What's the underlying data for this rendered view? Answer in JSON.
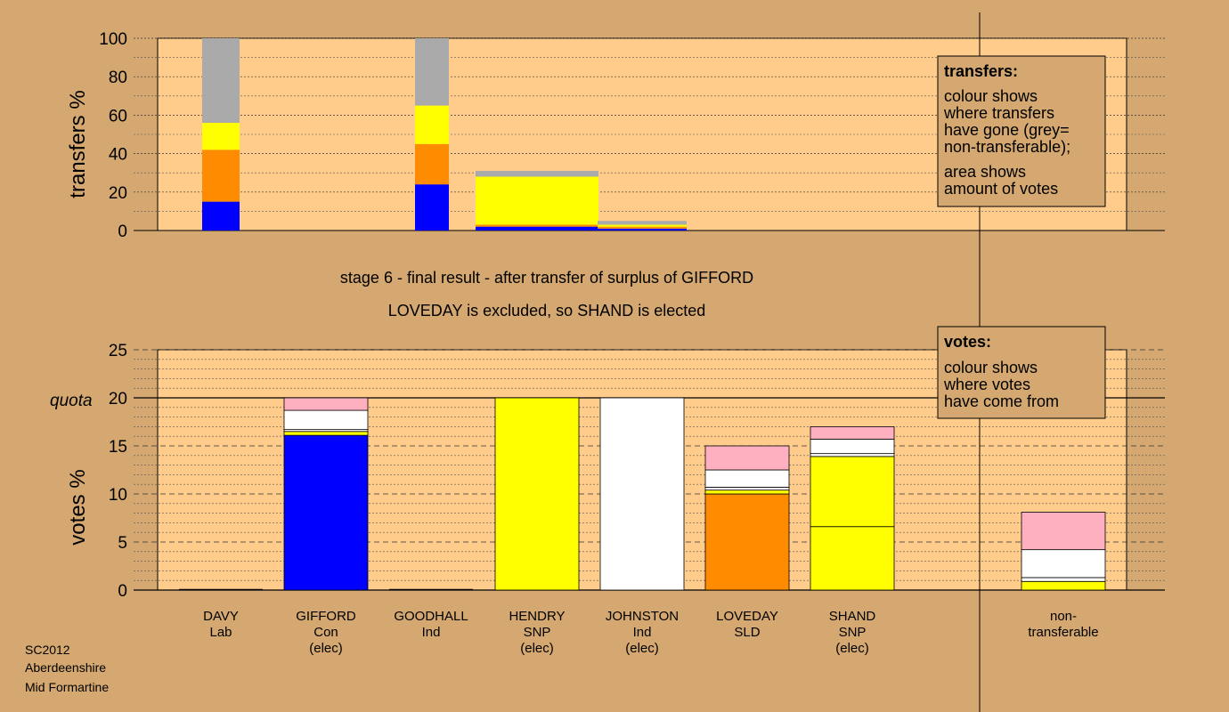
{
  "colors": {
    "background": "#D4A870",
    "plot_bg": "#FFCC8C",
    "legend_bg": "#D4A870",
    "con": "#0000FF",
    "snp": "#FFFF00",
    "ind": "#FFFFFF",
    "sld": "#FF8C00",
    "lab": "#FFB0C0",
    "nontransferable": "#AAAAAA"
  },
  "chart_data": [
    {
      "type": "bar",
      "stacked": true,
      "ylabel": "transfers %",
      "ylim": [
        0,
        100
      ],
      "yticks": [
        0,
        20,
        40,
        60,
        80,
        100
      ],
      "grid": true,
      "bars": [
        {
          "category": "DAVY",
          "segments": [
            {
              "color": "con",
              "value": 15
            },
            {
              "color": "sld",
              "value": 27
            },
            {
              "color": "snp",
              "value": 14
            },
            {
              "color": "nontransferable",
              "value": 44
            }
          ]
        },
        {
          "category": "GOODHALL",
          "segments": [
            {
              "color": "con",
              "value": 24
            },
            {
              "color": "sld",
              "value": 21
            },
            {
              "color": "snp",
              "value": 20
            },
            {
              "color": "nontransferable",
              "value": 35
            }
          ]
        },
        {
          "category": "HENDRY",
          "segments": [
            {
              "color": "con",
              "value": 2
            },
            {
              "color": "sld",
              "value": 1
            },
            {
              "color": "snp",
              "value": 25
            },
            {
              "color": "nontransferable",
              "value": 3
            }
          ]
        },
        {
          "category": "JOHNSTON",
          "segments": [
            {
              "color": "con",
              "value": 1
            },
            {
              "color": "sld",
              "value": 1
            },
            {
              "color": "snp",
              "value": 1
            },
            {
              "color": "nontransferable",
              "value": 2
            }
          ]
        }
      ],
      "legend": {
        "title": "transfers:",
        "lines": [
          "colour shows",
          "where transfers",
          "have gone (grey=",
          "non-transferable);",
          "area shows",
          "amount of votes"
        ]
      }
    },
    {
      "type": "bar",
      "stacked": true,
      "ylabel": "votes %",
      "ylim": [
        0,
        25
      ],
      "yticks": [
        0,
        5,
        10,
        15,
        20,
        25
      ],
      "quota": 20,
      "quota_label": "quota",
      "grid": true,
      "categories": [
        {
          "name": "DAVY",
          "sub": [
            "Lab"
          ]
        },
        {
          "name": "GIFFORD",
          "sub": [
            "Con",
            "(elec)"
          ]
        },
        {
          "name": "GOODHALL",
          "sub": [
            "Ind"
          ]
        },
        {
          "name": "HENDRY",
          "sub": [
            "SNP",
            "(elec)"
          ]
        },
        {
          "name": "JOHNSTON",
          "sub": [
            "Ind",
            "(elec)"
          ]
        },
        {
          "name": "LOVEDAY",
          "sub": [
            "SLD"
          ]
        },
        {
          "name": "SHAND",
          "sub": [
            "SNP",
            "(elec)"
          ]
        },
        {
          "name": "non-",
          "sub": [
            "transferable"
          ]
        }
      ],
      "bars": [
        {
          "category": "DAVY",
          "segments": []
        },
        {
          "category": "GIFFORD",
          "segments": [
            {
              "color": "con",
              "value": 16.1
            },
            {
              "color": "snp",
              "value": 0.4
            },
            {
              "color": "ind",
              "value": 0.2
            },
            {
              "color": "ind",
              "value": 2.0
            },
            {
              "color": "lab",
              "value": 1.3
            }
          ]
        },
        {
          "category": "GOODHALL",
          "segments": []
        },
        {
          "category": "HENDRY",
          "segments": [
            {
              "color": "snp",
              "value": 20
            }
          ]
        },
        {
          "category": "JOHNSTON",
          "segments": [
            {
              "color": "ind",
              "value": 20
            }
          ]
        },
        {
          "category": "LOVEDAY",
          "segments": [
            {
              "color": "sld",
              "value": 10
            },
            {
              "color": "snp",
              "value": 0.4
            },
            {
              "color": "ind",
              "value": 0.3
            },
            {
              "color": "ind",
              "value": 1.8
            },
            {
              "color": "lab",
              "value": 2.5
            }
          ]
        },
        {
          "category": "SHAND",
          "segments": [
            {
              "color": "snp",
              "value": 6.6
            },
            {
              "color": "snp",
              "value": 7.3
            },
            {
              "color": "ind",
              "value": 0.3
            },
            {
              "color": "ind",
              "value": 1.5
            },
            {
              "color": "lab",
              "value": 1.3
            }
          ]
        },
        {
          "category": "non-",
          "segments": [
            {
              "color": "snp",
              "value": 0.9
            },
            {
              "color": "ind",
              "value": 0.4
            },
            {
              "color": "ind",
              "value": 2.9
            },
            {
              "color": "lab",
              "value": 3.9
            }
          ]
        }
      ],
      "legend": {
        "title": "votes:",
        "lines": [
          "colour shows",
          "where votes",
          "have come from"
        ]
      }
    }
  ],
  "titles": {
    "line1": "stage 6 - final result - after transfer of surplus of GIFFORD",
    "line2": "LOVEDAY is excluded, so SHAND is elected"
  },
  "footer": [
    "SC2012",
    "Aberdeenshire",
    "Mid Formartine"
  ]
}
